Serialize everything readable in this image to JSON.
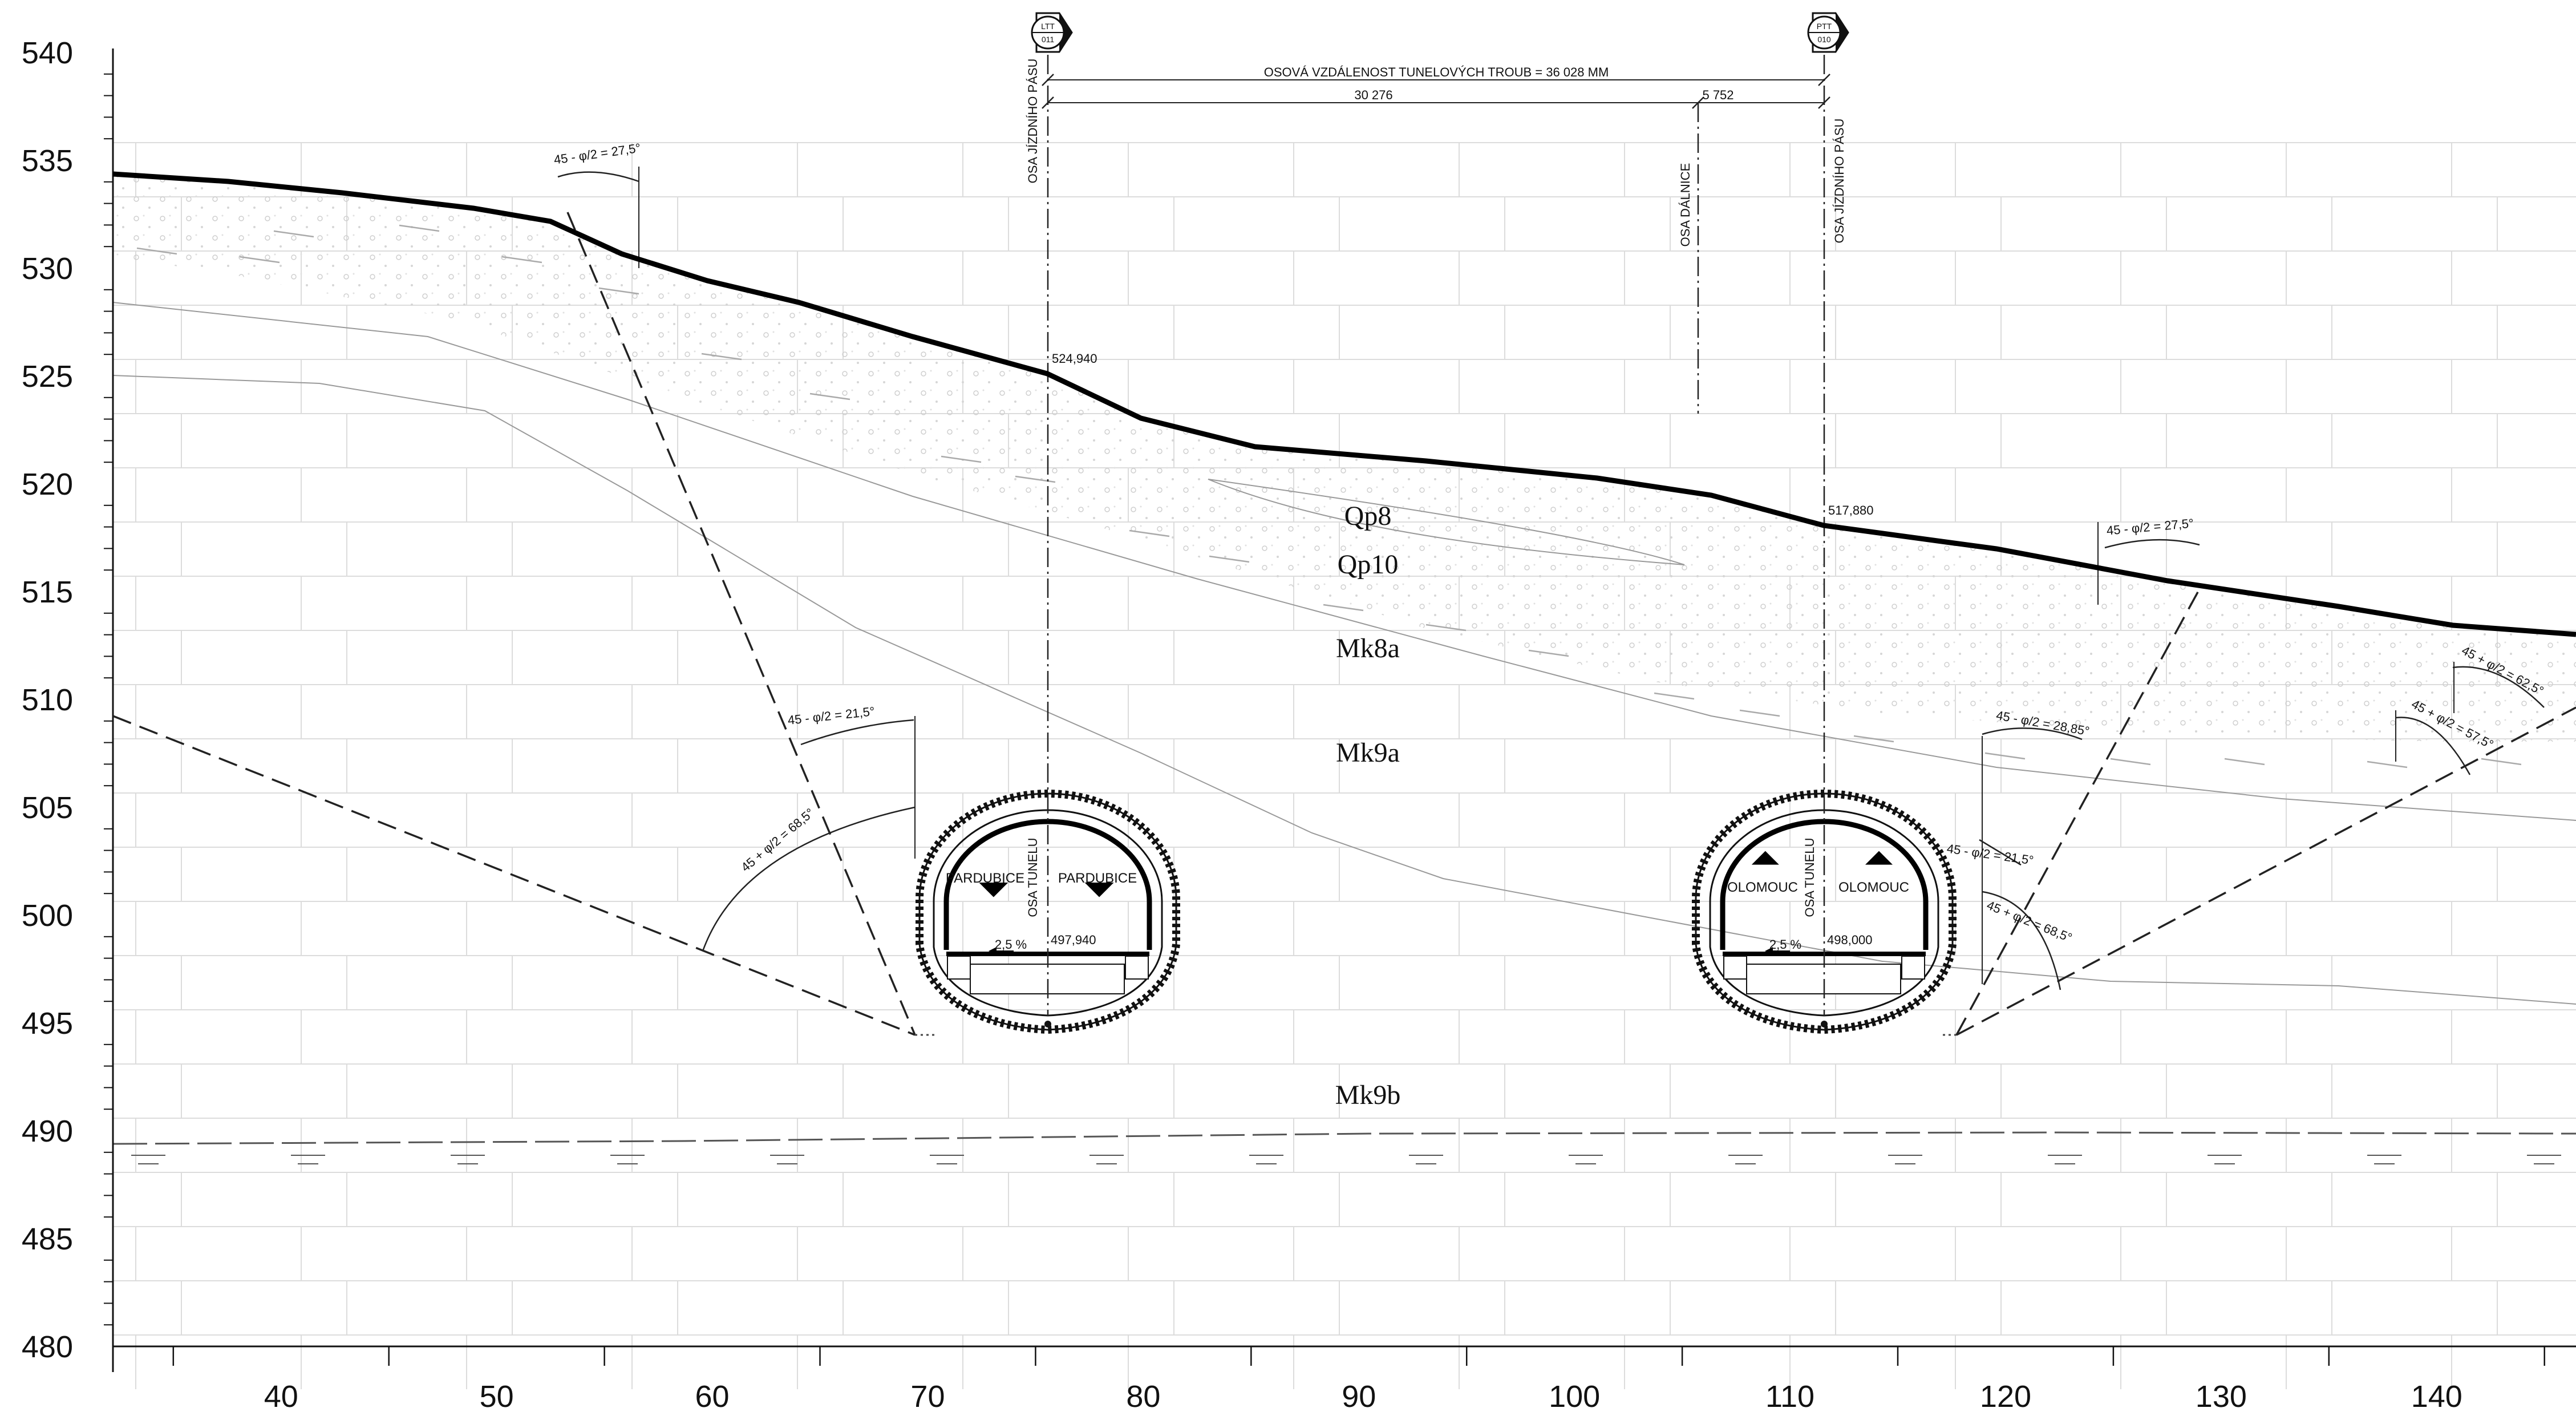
{
  "y_axis": {
    "min": 480,
    "max": 540,
    "step": 5,
    "labels": [
      "540",
      "535",
      "530",
      "525",
      "520",
      "515",
      "510",
      "505",
      "500",
      "495",
      "490",
      "485",
      "480"
    ]
  },
  "x_axis": {
    "min": 32.2,
    "max": 146,
    "labels": [
      "40",
      "50",
      "60",
      "70",
      "80",
      "90",
      "100",
      "110",
      "120",
      "130",
      "140"
    ]
  },
  "markers": [
    {
      "code": "LTT",
      "num": "011"
    },
    {
      "code": "PTT",
      "num": "010"
    }
  ],
  "dimensions": {
    "total": "OSOVÁ VZDÁLENOST TUNELOVÝCH TROUB = 36 028 MM",
    "left": "30 276",
    "right": "5 752"
  },
  "axes": {
    "left_lane": "OSA JÍZDNÍHO PÁSU",
    "highway": "OSA DÁLNICE",
    "right_lane": "OSA JÍZDNÍHO PÁSU",
    "tunnel_left": "OSA TUNELU",
    "tunnel_right": "OSA TUNELU"
  },
  "elevations": {
    "left_surface": "524,940",
    "right_surface": "517,880",
    "left_tunnel": "497,940",
    "right_tunnel": "498,000"
  },
  "layers": {
    "qp8": "Qp8",
    "qp10": "Qp10",
    "mk8a": "Mk8a",
    "mk9a": "Mk9a",
    "mk9b": "Mk9b"
  },
  "angles": {
    "a1": "45 - φ/2 = 27,5°",
    "a2": "45 - φ/2 = 21,5°",
    "a3": "45 + φ/2 = 68,5°",
    "a4": "45 - φ/2 = 27,5°",
    "a5": "45 - φ/2 = 28,85°",
    "a6": "45 - φ/2 = 21,5°",
    "a7": "45 + φ/2 = 68,5°",
    "a8": "45 + φ/2 = 62,5°",
    "a9": "45 + φ/2 = 57,5°"
  },
  "tunnels": {
    "left": {
      "dir_left": "PARDUBICE",
      "dir_right": "PARDUBICE",
      "slope": "2,5 %"
    },
    "right": {
      "dir_left": "OLOMOUC",
      "dir_right": "OLOMOUC",
      "slope": "2,5 %"
    }
  }
}
